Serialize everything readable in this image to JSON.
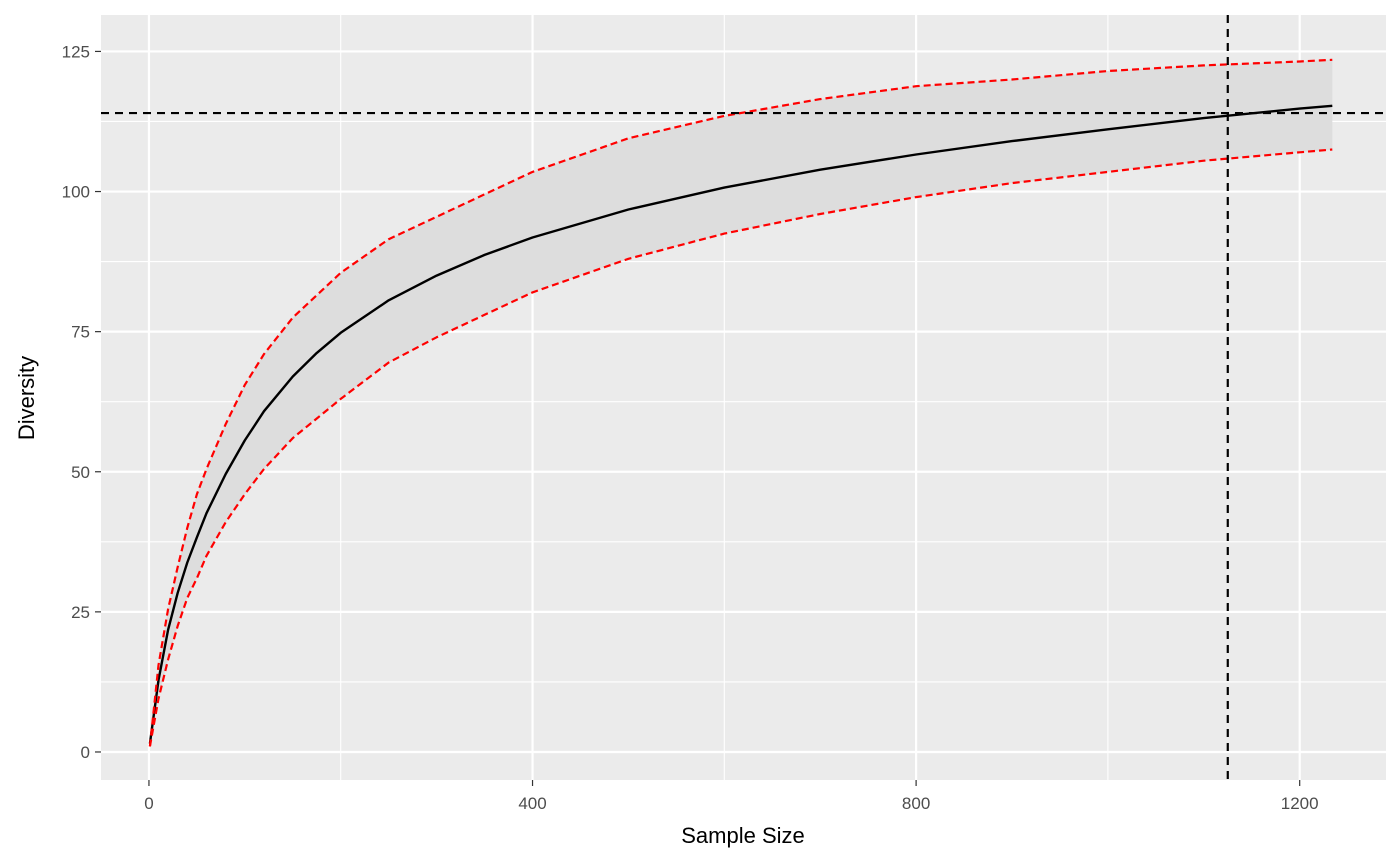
{
  "chart_data": {
    "type": "line",
    "title": "",
    "xlabel": "Sample Size",
    "ylabel": "Diversity",
    "xlim": [
      -50,
      1290
    ],
    "ylim": [
      -5,
      131.5
    ],
    "x_ticks": [
      0,
      400,
      800,
      1200
    ],
    "x_tick_labels": [
      "0",
      "400",
      "800",
      "1200"
    ],
    "y_ticks": [
      0,
      25,
      50,
      75,
      100,
      125
    ],
    "y_tick_labels": [
      "0",
      "25",
      "50",
      "75",
      "100",
      "125"
    ],
    "grid": true,
    "legend": "none",
    "colors": {
      "panel": "#EBEBEB",
      "grid": "#FFFFFF",
      "ribbon": "#DDDDDD",
      "mean_line": "#000000",
      "bounds": "#FF0000",
      "reference": "#000000",
      "tick_text": "#4D4D4D"
    },
    "series": [
      {
        "style": "solid",
        "color": "#000000",
        "x": [
          1,
          10,
          20,
          30,
          40,
          50,
          60,
          80,
          100,
          120,
          150,
          175,
          200,
          250,
          300,
          350,
          400,
          500,
          600,
          700,
          800,
          900,
          1000,
          1100,
          1200,
          1234
        ],
        "y": [
          1.5,
          12.8,
          21.8,
          28.4,
          33.8,
          38.3,
          42.6,
          49.6,
          55.6,
          60.8,
          67.0,
          71.2,
          74.8,
          80.6,
          85.0,
          88.7,
          91.8,
          96.8,
          100.7,
          103.9,
          106.6,
          109.0,
          111.1,
          113.1,
          114.8,
          115.3
        ]
      },
      {
        "style": "dashed",
        "color": "#FF0000",
        "x": [
          1,
          10,
          20,
          30,
          40,
          50,
          60,
          80,
          100,
          120,
          150,
          175,
          200,
          250,
          300,
          350,
          400,
          500,
          600,
          700,
          800,
          900,
          1000,
          1100,
          1200,
          1234
        ],
        "y": [
          1,
          15.5,
          25.5,
          33.0,
          40.0,
          46.0,
          50.5,
          58.5,
          65.5,
          71.0,
          77.5,
          81.5,
          85.5,
          91.5,
          95.5,
          99.5,
          103.5,
          109.5,
          113.5,
          116.5,
          118.8,
          120.0,
          121.5,
          122.5,
          123.2,
          123.5
        ]
      },
      {
        "style": "dashed",
        "color": "#FF0000",
        "x": [
          1,
          10,
          20,
          30,
          40,
          50,
          60,
          80,
          100,
          120,
          150,
          175,
          200,
          250,
          300,
          350,
          400,
          500,
          600,
          700,
          800,
          900,
          1000,
          1100,
          1200,
          1234
        ],
        "y": [
          1,
          9.5,
          16.5,
          22.5,
          27.5,
          31.0,
          35.0,
          41.0,
          46.0,
          50.5,
          56.0,
          59.5,
          63.0,
          69.5,
          74.0,
          78.0,
          82.0,
          88.0,
          92.5,
          96.0,
          99.0,
          101.5,
          103.5,
          105.5,
          107.0,
          107.5
        ]
      }
    ],
    "reference_lines": [
      {
        "orientation": "horizontal",
        "value": 114,
        "style": "dashed",
        "color": "#000000"
      },
      {
        "orientation": "vertical",
        "value": 1125,
        "style": "dashed",
        "color": "#000000"
      }
    ]
  }
}
